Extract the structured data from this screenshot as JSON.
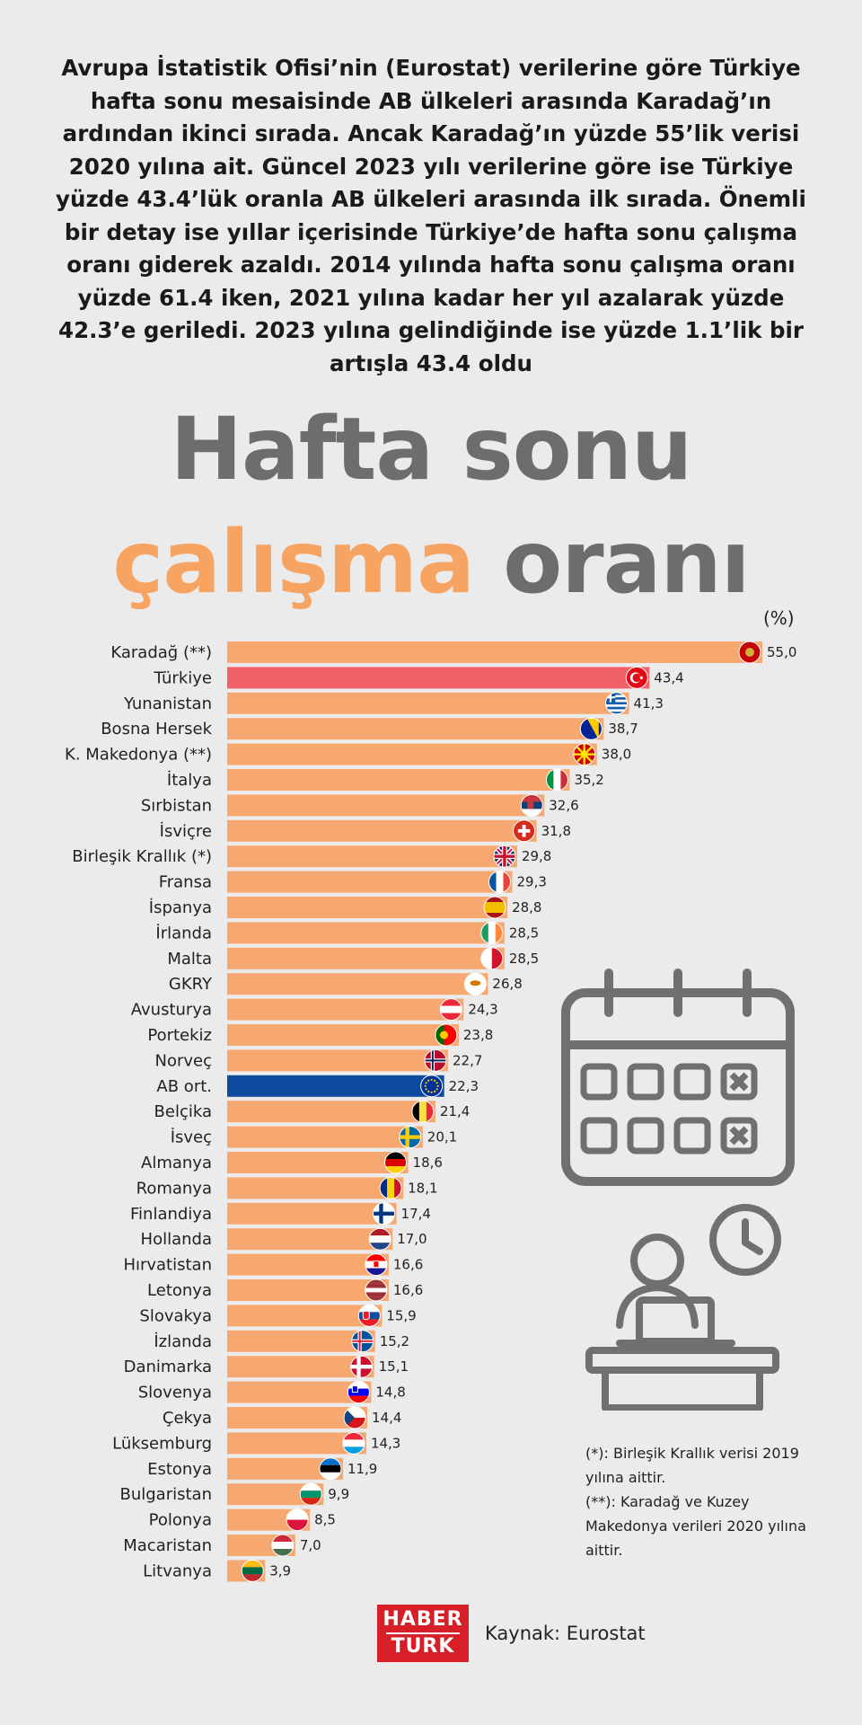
{
  "intro_text": "Avrupa İstatistik Ofisi’nin (Eurostat) verilerine göre Türkiye hafta sonu mesaisinde AB ülkeleri arasında Karadağ’ın ardından ikinci sırada. Ancak Karadağ’ın yüzde 55’lik verisi 2020 yılına ait. Güncel 2023 yılı verilerine göre ise Türkiye yüzde 43.4’lük oranla AB ülkeleri arasında ilk sırada. Önemli bir detay ise yıllar içerisinde Türkiye’de hafta sonu çalışma oranı giderek azaldı. 2014 yılında hafta sonu çalışma oranı yüzde 61.4 iken, 2021 yılına kadar her yıl azalarak yüzde 42.3’e geriledi. 2023 yılına gelindiğinde ise yüzde 1.1’lik bir artışla 43.4 oldu",
  "title": {
    "line1": "Hafta sonu",
    "line2_accent": "çalışma",
    "line2_rest": "oranı"
  },
  "colors": {
    "bar": "#f7a871",
    "highlight": "#f2616a",
    "eu": "#0f4a9e",
    "accent": "#f7a362",
    "title_gray": "#6d6d6d",
    "icon_gray": "#707070",
    "brand": "#d61f26"
  },
  "chart_data": {
    "type": "bar",
    "orientation": "horizontal",
    "unit_label": "(%)",
    "xlim": [
      0,
      55
    ],
    "categories": [
      "Karadağ (**)",
      "Türkiye",
      "Yunanistan",
      "Bosna Hersek",
      "K. Makedonya (**)",
      "İtalya",
      "Sırbistan",
      "İsviçre",
      "Birleşik Krallık (*)",
      "Fransa",
      "İspanya",
      "İrlanda",
      "Malta",
      "GKRY",
      "Avusturya",
      "Portekiz",
      "Norveç",
      "AB ort.",
      "Belçika",
      "İsveç",
      "Almanya",
      "Romanya",
      "Finlandiya",
      "Hollanda",
      "Hırvatistan",
      "Letonya",
      "Slovakya",
      "İzlanda",
      "Danimarka",
      "Slovenya",
      "Çekya",
      "Lüksemburg",
      "Estonya",
      "Bulgaristan",
      "Polonya",
      "Macaristan",
      "Litvanya"
    ],
    "values": [
      55.0,
      43.4,
      41.3,
      38.7,
      38.0,
      35.2,
      32.6,
      31.8,
      29.8,
      29.3,
      28.8,
      28.5,
      28.5,
      26.8,
      24.3,
      23.8,
      22.7,
      22.3,
      21.4,
      20.1,
      18.6,
      18.1,
      17.4,
      17.0,
      16.6,
      16.6,
      15.9,
      15.2,
      15.1,
      14.8,
      14.4,
      14.3,
      11.9,
      9.9,
      8.5,
      7.0,
      3.9
    ],
    "value_labels": [
      "55,0",
      "43,4",
      "41,3",
      "38,7",
      "38,0",
      "35,2",
      "32,6",
      "31,8",
      "29,8",
      "29,3",
      "28,8",
      "28,5",
      "28,5",
      "26,8",
      "24,3",
      "23,8",
      "22,7",
      "22,3",
      "21,4",
      "20,1",
      "18,6",
      "18,1",
      "17,4",
      "17,0",
      "16,6",
      "16,6",
      "15,9",
      "15,2",
      "15,1",
      "14,8",
      "14,4",
      "14,3",
      "11,9",
      "9,9",
      "8,5",
      "7,0",
      "3,9"
    ],
    "flags": [
      "montenegro",
      "turkey",
      "greece",
      "bosnia",
      "north-macedonia",
      "italy",
      "serbia",
      "switzerland",
      "united-kingdom",
      "france",
      "spain",
      "ireland",
      "malta",
      "cyprus",
      "austria",
      "portugal",
      "norway",
      "european-union",
      "belgium",
      "sweden",
      "germany",
      "romania",
      "finland",
      "netherlands",
      "croatia",
      "latvia",
      "slovakia",
      "iceland",
      "denmark",
      "slovenia",
      "czechia",
      "luxembourg",
      "estonia",
      "bulgaria",
      "poland",
      "hungary",
      "lithuania"
    ],
    "highlight": {
      "Türkiye": "highlight",
      "AB ort.": "eu"
    }
  },
  "notes": [
    "(*): Birleşik Krallık verisi 2019 yılına aittir.",
    "(**): Karadağ ve  Kuzey Makedonya verileri 2020 yılına aittir."
  ],
  "footer": {
    "logo_line1": "HABER",
    "logo_line2": "TURK",
    "source": "Kaynak: Eurostat"
  },
  "decor": {
    "calendar": "calendar-icon",
    "desk": "desk-worker-icon",
    "clock": "clock-icon"
  }
}
